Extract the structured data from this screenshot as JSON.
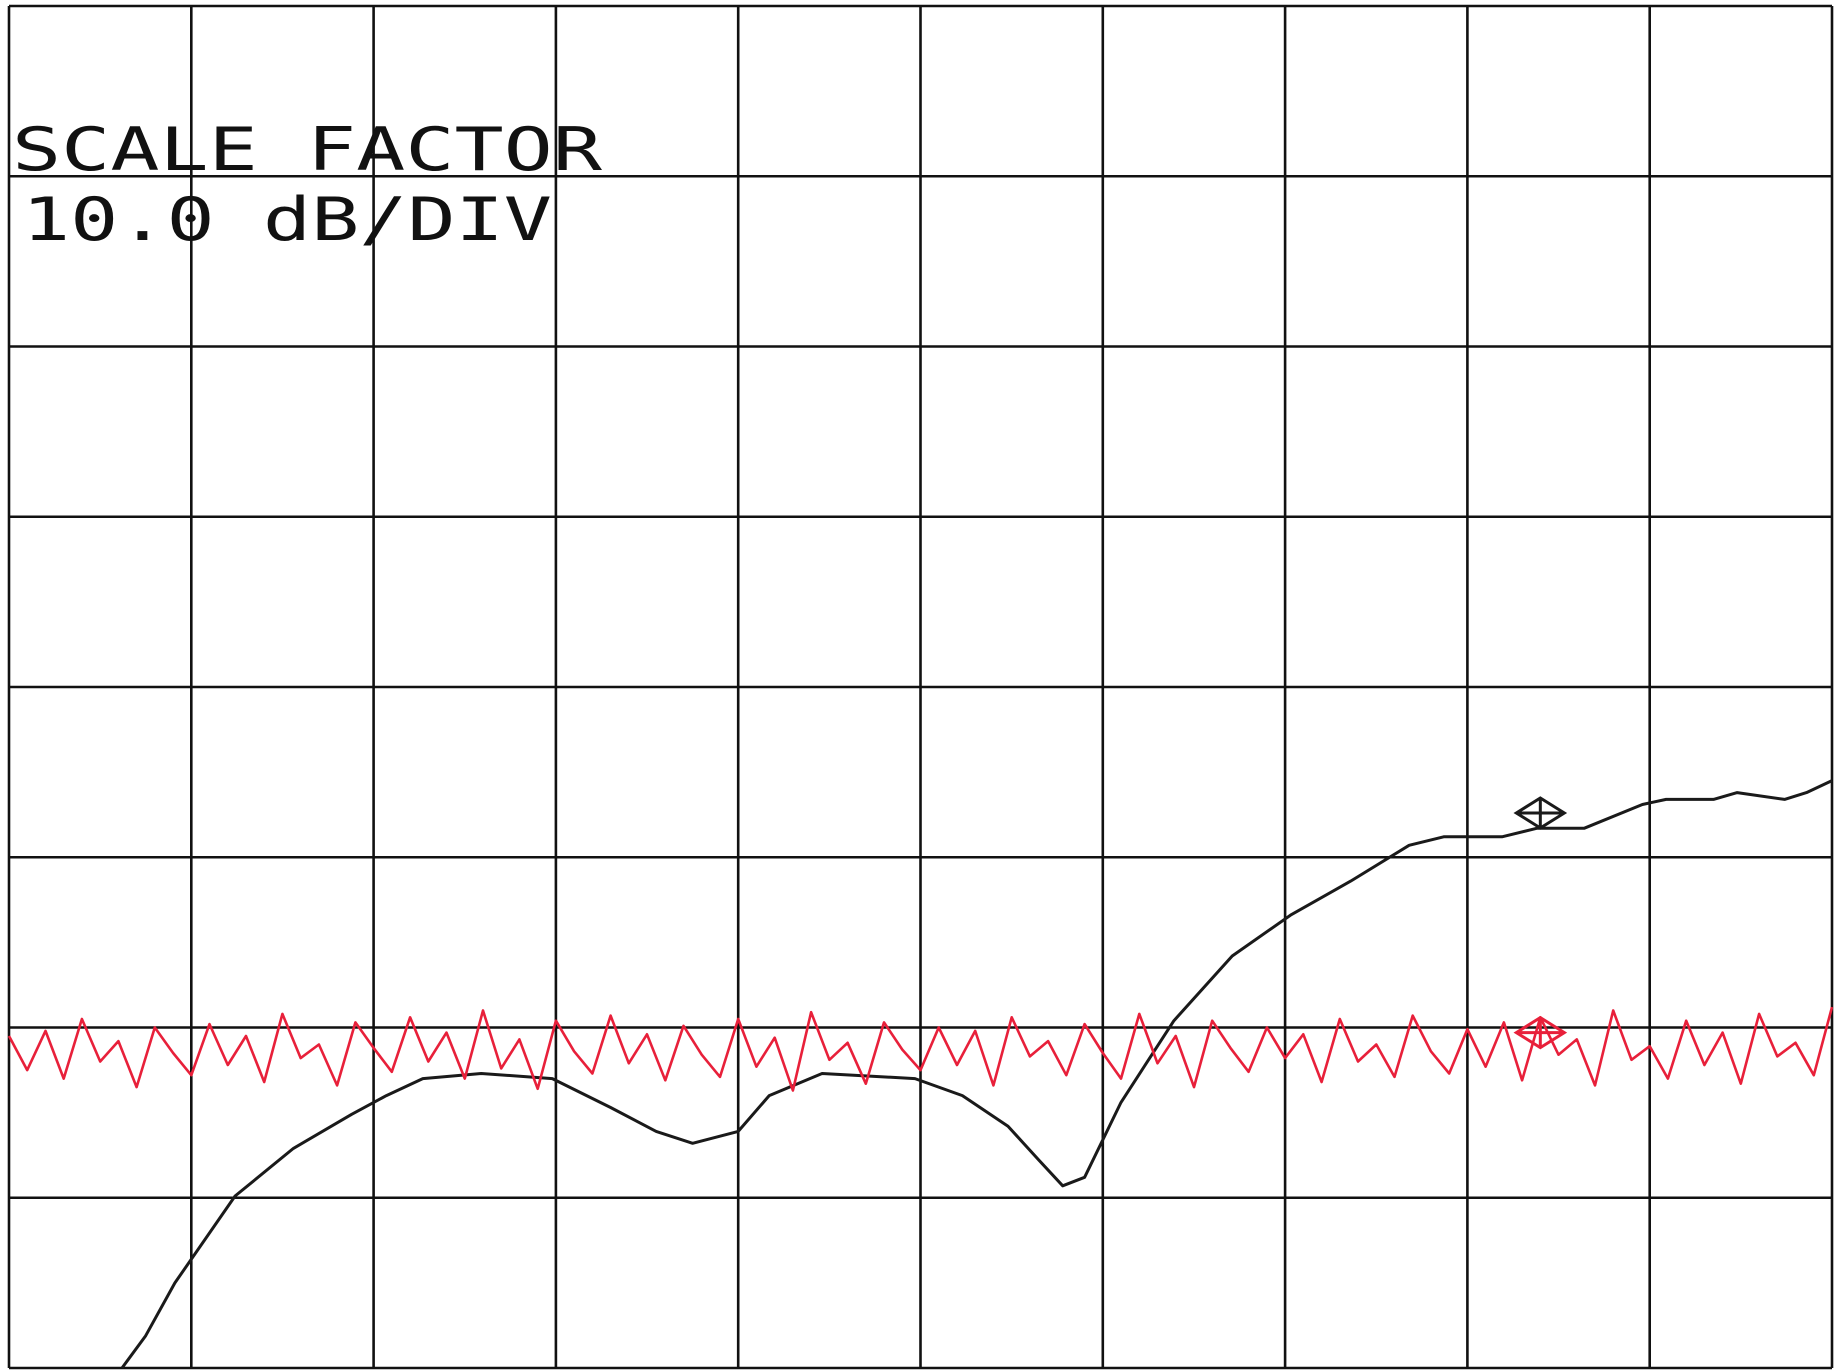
{
  "chart_data": {
    "type": "line",
    "annotations": [
      "SCALE FACTOR",
      "10.0 dB/DIV"
    ],
    "xlim": [
      0,
      10
    ],
    "ylim": [
      0,
      8
    ],
    "xticks": [
      0,
      1,
      2,
      3,
      4,
      5,
      6,
      7,
      8,
      9,
      10
    ],
    "yticks": [
      0,
      1,
      2,
      3,
      4,
      5,
      6,
      7,
      8
    ],
    "tick_labels": false,
    "grid": true,
    "series": [
      {
        "color": "#1a1a1a",
        "x": [
          0.62,
          0.75,
          0.91,
          1.24,
          1.56,
          1.88,
          2.07,
          2.27,
          2.59,
          2.98,
          3.3,
          3.55,
          3.75,
          4.0,
          4.17,
          4.46,
          4.97,
          5.23,
          5.48,
          5.65,
          5.78,
          5.9,
          6.1,
          6.39,
          6.71,
          7.03,
          7.36,
          7.68,
          7.87,
          8.19,
          8.38,
          8.64,
          8.96,
          9.09,
          9.35,
          9.48,
          9.74,
          9.86,
          10
        ],
        "values": [
          0,
          0.19,
          0.5,
          1.01,
          1.29,
          1.49,
          1.6,
          1.7,
          1.73,
          1.7,
          1.53,
          1.39,
          1.32,
          1.39,
          1.6,
          1.73,
          1.7,
          1.6,
          1.42,
          1.22,
          1.07,
          1.12,
          1.56,
          2.04,
          2.42,
          2.66,
          2.86,
          3.07,
          3.12,
          3.12,
          3.17,
          3.17,
          3.31,
          3.34,
          3.34,
          3.38,
          3.34,
          3.38,
          3.45
        ]
      },
      {
        "color": "#e8203a",
        "x": [
          0,
          0.1,
          0.2,
          0.3,
          0.4,
          0.5,
          0.6,
          0.7,
          0.8,
          0.9,
          1,
          1.1,
          1.2,
          1.3,
          1.4,
          1.5,
          1.6,
          1.7,
          1.8,
          1.9,
          2,
          2.1,
          2.2,
          2.3,
          2.4,
          2.5,
          2.6,
          2.7,
          2.8,
          2.9,
          3,
          3.1,
          3.2,
          3.3,
          3.4,
          3.5,
          3.6,
          3.7,
          3.8,
          3.9,
          4,
          4.1,
          4.2,
          4.3,
          4.4,
          4.5,
          4.6,
          4.7,
          4.8,
          4.9,
          5,
          5.1,
          5.2,
          5.3,
          5.4,
          5.5,
          5.6,
          5.7,
          5.8,
          5.9,
          6,
          6.1,
          6.2,
          6.3,
          6.4,
          6.5,
          6.6,
          6.7,
          6.8,
          6.9,
          7,
          7.1,
          7.2,
          7.3,
          7.4,
          7.5,
          7.6,
          7.7,
          7.8,
          7.9,
          8,
          8.1,
          8.2,
          8.3,
          8.4,
          8.5,
          8.6,
          8.7,
          8.8,
          8.9,
          9,
          9.1,
          9.2,
          9.3,
          9.4,
          9.5,
          9.6,
          9.7,
          9.8,
          9.9,
          10
        ],
        "values": [
          1.95,
          1.75,
          1.98,
          1.7,
          2.05,
          1.8,
          1.92,
          1.65,
          2.0,
          1.85,
          1.72,
          2.02,
          1.78,
          1.95,
          1.68,
          2.08,
          1.82,
          1.9,
          1.66,
          2.03,
          1.88,
          1.74,
          2.06,
          1.8,
          1.97,
          1.7,
          2.1,
          1.76,
          1.93,
          1.64,
          2.04,
          1.86,
          1.73,
          2.07,
          1.79,
          1.96,
          1.69,
          2.01,
          1.84,
          1.71,
          2.05,
          1.77,
          1.94,
          1.63,
          2.09,
          1.81,
          1.91,
          1.67,
          2.03,
          1.87,
          1.75,
          2.0,
          1.78,
          1.98,
          1.66,
          2.06,
          1.83,
          1.92,
          1.72,
          2.02,
          1.85,
          1.7,
          2.08,
          1.79,
          1.95,
          1.65,
          2.04,
          1.88,
          1.74,
          2.0,
          1.82,
          1.96,
          1.68,
          2.05,
          1.8,
          1.9,
          1.71,
          2.07,
          1.86,
          1.73,
          1.99,
          1.77,
          2.03,
          1.69,
          2.06,
          1.84,
          1.93,
          1.66,
          2.1,
          1.81,
          1.89,
          1.7,
          2.04,
          1.78,
          1.97,
          1.67,
          2.08,
          1.83,
          1.91,
          1.72,
          2.12
        ]
      }
    ],
    "markers": [
      {
        "x": 8.4,
        "y": 3.26,
        "color": "#1a1a1a"
      },
      {
        "x": 8.4,
        "y": 1.97,
        "color": "#e8203a"
      }
    ]
  }
}
